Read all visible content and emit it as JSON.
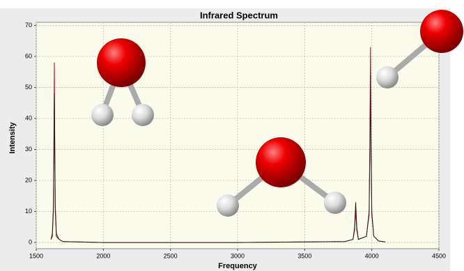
{
  "chart_data": {
    "type": "line",
    "title": "Infrared Spectrum",
    "x_label": "Frequency",
    "y_label": "Intensity",
    "x": [
      1610,
      1620,
      1628,
      1632,
      1635,
      1638,
      1642,
      1650,
      1670,
      1700,
      2000,
      3000,
      3800,
      3860,
      3872,
      3877,
      3880,
      3883,
      3888,
      3900,
      3960,
      3980,
      3986,
      3990,
      3994,
      4000,
      4015,
      4050,
      4100
    ],
    "series": [
      {
        "color": "#b8001c",
        "values": [
          1,
          3,
          12,
          35,
          58,
          35,
          12,
          3,
          1,
          0.3,
          0,
          0,
          0.3,
          1,
          4,
          8,
          11,
          8,
          4,
          1,
          2,
          10,
          35,
          63,
          35,
          10,
          2,
          0.5,
          0.2
        ]
      },
      {
        "color": "#202020",
        "values": [
          1,
          2,
          10,
          30,
          48,
          30,
          10,
          2,
          1,
          0.3,
          0,
          0,
          0.3,
          1,
          5,
          10,
          13,
          10,
          5,
          1,
          2,
          9,
          30,
          54,
          30,
          9,
          2,
          0.5,
          0.2
        ]
      }
    ],
    "xlim": [
      1500,
      4500
    ],
    "xticks": [
      1500,
      2000,
      2500,
      3000,
      3500,
      4000,
      4500
    ],
    "ylim": [
      -2,
      71
    ],
    "yticks": [
      0,
      10,
      20,
      30,
      40,
      50,
      60,
      70
    ],
    "grid": true
  }
}
